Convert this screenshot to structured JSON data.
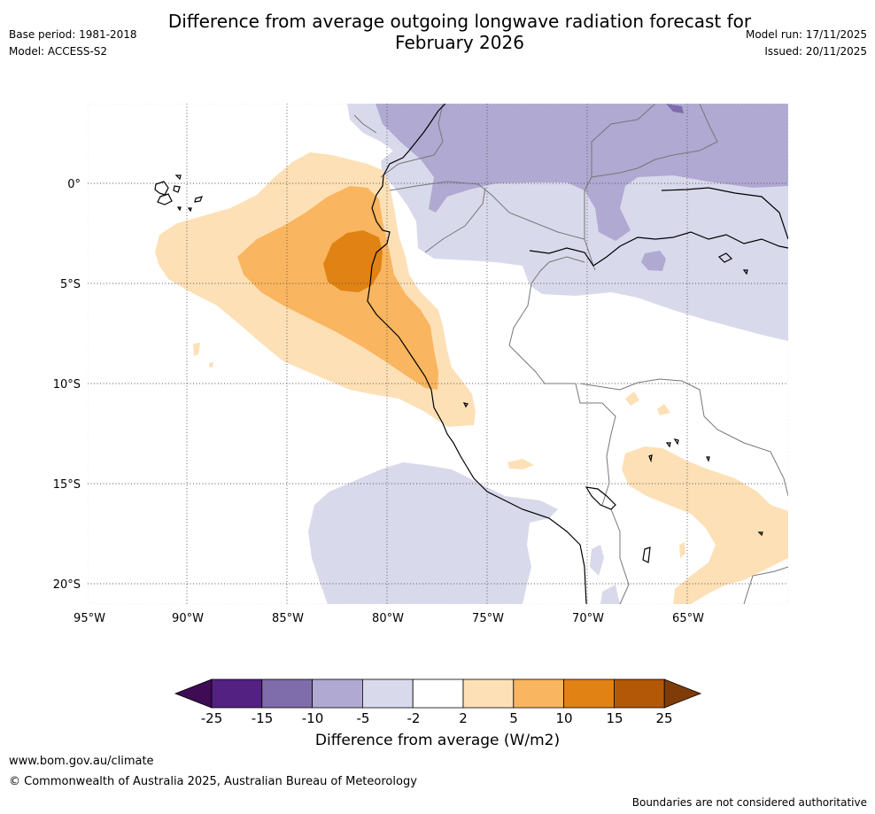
{
  "header": {
    "title_line1": "Difference from average outgoing longwave radiation forecast for",
    "title_line2": "February 2026",
    "base_period": "Base period: 1981-2018",
    "model": "Model: ACCESS-S2",
    "model_run": "Model run: 17/11/2025",
    "issued": "Issued: 20/11/2025"
  },
  "map": {
    "lon_labels": [
      "95°W",
      "90°W",
      "85°W",
      "80°W",
      "75°W",
      "70°W",
      "65°W"
    ],
    "lat_labels": [
      "0°",
      "5°S",
      "10°S",
      "15°S",
      "20°S"
    ]
  },
  "colorbar": {
    "title": "Difference from average (W/m2)",
    "ticks": [
      "-25",
      "-15",
      "-10",
      "-5",
      "-2",
      "2",
      "5",
      "10",
      "15",
      "25"
    ],
    "colors": [
      "#3f0b55",
      "#532181",
      "#7e6cab",
      "#b0a9d2",
      "#d9d9ec",
      "#ffffff",
      "#fde0b6",
      "#f9b55f",
      "#e08214",
      "#b35806",
      "#7f3b08"
    ]
  },
  "footer": {
    "website": "www.bom.gov.au/climate",
    "copyright": "© Commonwealth of Australia 2025, Australian Bureau of Meteorology",
    "disclaimer": "Boundaries are not considered authoritative"
  }
}
